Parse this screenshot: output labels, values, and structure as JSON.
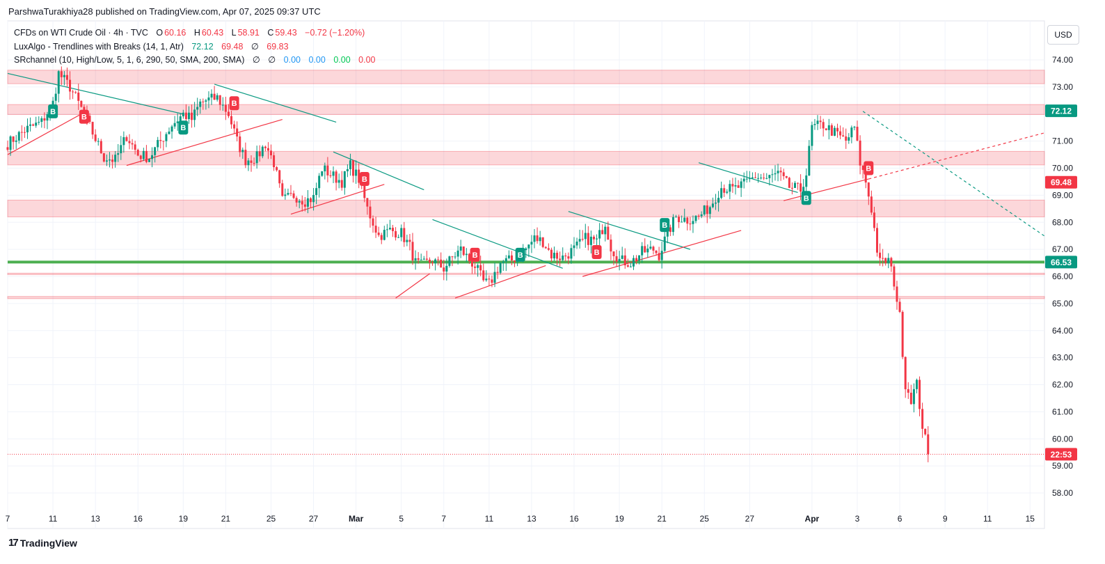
{
  "header": {
    "publisher_line": "ParshwaTurakhiya28 published on TradingView.com, Apr 07, 2025 09:37 UTC"
  },
  "legend": {
    "symbol": "CFDs on WTI Crude Oil · 4h · TVC",
    "o_label": "O",
    "o_value": "60.16",
    "h_label": "H",
    "h_value": "60.43",
    "l_label": "L",
    "l_value": "58.91",
    "c_label": "C",
    "c_value": "59.43",
    "change": "−0.72 (−1.20%)",
    "indicator1_name": "LuxAlgo - Trendlines with Breaks (14, 1, Atr)",
    "indicator1_v1": "72.12",
    "indicator1_v2": "69.48",
    "indicator1_v3": "∅",
    "indicator1_v4": "69.83",
    "indicator2_name": "SRchannel (10, High/Low, 5, 1, 6, 290, 50, SMA, 200, SMA)",
    "indicator2_v1": "∅",
    "indicator2_v2": "∅",
    "indicator2_v3": "0.00",
    "indicator2_v4": "0.00",
    "indicator2_v5": "0.00",
    "indicator2_v6": "0.00"
  },
  "currency_button": "USD",
  "footer": {
    "brand": "TradingView",
    "brand_mark": "17"
  },
  "colors": {
    "up": "#089981",
    "down": "#f23645",
    "zone": "#f23645",
    "support_line": "#4caf50"
  },
  "chart_data": {
    "type": "candlestick",
    "timeframe": "4h",
    "y_range": [
      57.5,
      74.5
    ],
    "y_ticks": [
      58,
      59,
      60,
      61,
      62,
      63,
      64,
      65,
      66,
      67,
      68,
      69,
      70,
      71,
      72,
      73,
      74
    ],
    "x_ticks": [
      {
        "label": "7",
        "i": 0,
        "bold": false
      },
      {
        "label": "11",
        "i": 16,
        "bold": false
      },
      {
        "label": "13",
        "i": 31,
        "bold": false
      },
      {
        "label": "16",
        "i": 46,
        "bold": false
      },
      {
        "label": "19",
        "i": 62,
        "bold": false
      },
      {
        "label": "21",
        "i": 77,
        "bold": false
      },
      {
        "label": "25",
        "i": 93,
        "bold": false
      },
      {
        "label": "27",
        "i": 108,
        "bold": false
      },
      {
        "label": "Mar",
        "i": 123,
        "bold": true
      },
      {
        "label": "5",
        "i": 139,
        "bold": false
      },
      {
        "label": "7",
        "i": 154,
        "bold": false
      },
      {
        "label": "11",
        "i": 170,
        "bold": false
      },
      {
        "label": "13",
        "i": 185,
        "bold": false
      },
      {
        "label": "16",
        "i": 200,
        "bold": false
      },
      {
        "label": "19",
        "i": 216,
        "bold": false
      },
      {
        "label": "21",
        "i": 231,
        "bold": false
      },
      {
        "label": "25",
        "i": 246,
        "bold": false
      },
      {
        "label": "27",
        "i": 262,
        "bold": false
      },
      {
        "label": "Apr",
        "i": 284,
        "bold": true
      },
      {
        "label": "3",
        "i": 300,
        "bold": false
      },
      {
        "label": "6",
        "i": 315,
        "bold": false
      },
      {
        "label": "9",
        "i": 331,
        "bold": false
      },
      {
        "label": "11",
        "i": 346,
        "bold": false
      },
      {
        "label": "15",
        "i": 361,
        "bold": false
      }
    ],
    "price_labels": [
      {
        "value": 72.12,
        "text": "72.12",
        "color": "#089981"
      },
      {
        "value": 69.48,
        "text": "69.48",
        "color": "#f23645"
      },
      {
        "value": 66.53,
        "text": "66.53",
        "color": "#089981"
      },
      {
        "value": 59.43,
        "text": "22:53",
        "color": "#f23645"
      }
    ],
    "current_price": 59.43,
    "zones": [
      [
        73.12,
        73.62
      ],
      [
        71.98,
        72.35
      ],
      [
        70.12,
        70.62
      ],
      [
        68.2,
        68.82
      ],
      [
        66.08,
        66.12
      ],
      [
        65.18,
        65.26
      ]
    ],
    "support_level": 66.53,
    "anchors": [
      [
        0,
        70.9
      ],
      [
        6,
        71.4
      ],
      [
        12,
        71.7
      ],
      [
        16,
        72.4
      ],
      [
        18,
        73.5
      ],
      [
        22,
        73.0
      ],
      [
        26,
        72.2
      ],
      [
        30,
        71.3
      ],
      [
        34,
        70.4
      ],
      [
        38,
        70.3
      ],
      [
        42,
        71.2
      ],
      [
        46,
        70.5
      ],
      [
        50,
        70.4
      ],
      [
        54,
        71.0
      ],
      [
        58,
        71.6
      ],
      [
        62,
        72.0
      ],
      [
        65,
        71.8
      ],
      [
        68,
        72.4
      ],
      [
        70,
        72.5
      ],
      [
        74,
        72.6
      ],
      [
        78,
        72.0
      ],
      [
        81,
        71.0
      ],
      [
        84,
        70.3
      ],
      [
        88,
        70.4
      ],
      [
        91,
        70.9
      ],
      [
        94,
        70.2
      ],
      [
        97,
        68.8
      ],
      [
        101,
        69.0
      ],
      [
        105,
        68.8
      ],
      [
        108,
        68.9
      ],
      [
        111,
        70.0
      ],
      [
        115,
        69.7
      ],
      [
        118,
        69.5
      ],
      [
        121,
        70.1
      ],
      [
        124,
        69.6
      ],
      [
        127,
        68.5
      ],
      [
        131,
        67.5
      ],
      [
        135,
        67.7
      ],
      [
        139,
        67.6
      ],
      [
        142,
        67.1
      ],
      [
        144,
        66.5
      ],
      [
        146,
        66.4
      ],
      [
        150,
        66.6
      ],
      [
        154,
        66.3
      ],
      [
        157,
        66.7
      ],
      [
        160,
        67.0
      ],
      [
        163,
        66.6
      ],
      [
        165,
        66.4
      ],
      [
        168,
        65.8
      ],
      [
        170,
        65.7
      ],
      [
        174,
        66.5
      ],
      [
        178,
        66.6
      ],
      [
        182,
        66.9
      ],
      [
        186,
        67.4
      ],
      [
        189,
        67.3
      ],
      [
        192,
        66.8
      ],
      [
        196,
        66.7
      ],
      [
        200,
        67.0
      ],
      [
        204,
        67.4
      ],
      [
        208,
        67.3
      ],
      [
        211,
        68.0
      ],
      [
        213,
        67.1
      ],
      [
        216,
        66.6
      ],
      [
        220,
        66.5
      ],
      [
        224,
        66.9
      ],
      [
        228,
        67.0
      ],
      [
        230,
        66.8
      ],
      [
        233,
        67.6
      ],
      [
        236,
        68.2
      ],
      [
        240,
        68.1
      ],
      [
        244,
        68.2
      ],
      [
        248,
        68.6
      ],
      [
        252,
        69.3
      ],
      [
        256,
        69.2
      ],
      [
        260,
        69.4
      ],
      [
        264,
        69.7
      ],
      [
        268,
        69.6
      ],
      [
        272,
        69.8
      ],
      [
        276,
        69.3
      ],
      [
        280,
        69.2
      ],
      [
        282,
        69.8
      ],
      [
        284,
        71.5
      ],
      [
        288,
        71.6
      ],
      [
        292,
        71.3
      ],
      [
        296,
        71.0
      ],
      [
        299,
        71.5
      ],
      [
        301,
        70.2
      ],
      [
        303,
        69.5
      ],
      [
        305,
        68.5
      ],
      [
        307,
        67.0
      ],
      [
        308,
        66.5
      ],
      [
        311,
        66.6
      ],
      [
        313,
        65.8
      ],
      [
        315,
        64.5
      ],
      [
        317,
        62.0
      ],
      [
        319,
        61.5
      ],
      [
        321,
        62.0
      ],
      [
        323,
        60.5
      ],
      [
        325,
        59.43
      ]
    ],
    "trendlines": [
      {
        "color": "#089981",
        "dashed": false,
        "from": [
          -2,
          73.5
        ],
        "to": [
          62,
          72.0
        ]
      },
      {
        "color": "#f23645",
        "dashed": false,
        "from": [
          -2,
          70.5
        ],
        "to": [
          26,
          72.0
        ]
      },
      {
        "color": "#089981",
        "dashed": false,
        "from": [
          73,
          73.1
        ],
        "to": [
          116,
          71.7
        ]
      },
      {
        "color": "#f23645",
        "dashed": false,
        "from": [
          42,
          70.1
        ],
        "to": [
          97,
          71.8
        ]
      },
      {
        "color": "#089981",
        "dashed": false,
        "from": [
          115,
          70.6
        ],
        "to": [
          147,
          69.2
        ]
      },
      {
        "color": "#f23645",
        "dashed": false,
        "from": [
          100,
          68.3
        ],
        "to": [
          133,
          69.4
        ]
      },
      {
        "color": "#089981",
        "dashed": false,
        "from": [
          150,
          68.1
        ],
        "to": [
          196,
          66.3
        ]
      },
      {
        "color": "#f23645",
        "dashed": false,
        "from": [
          137,
          65.2
        ],
        "to": [
          149,
          66.1
        ]
      },
      {
        "color": "#f23645",
        "dashed": false,
        "from": [
          158,
          65.2
        ],
        "to": [
          190,
          66.4
        ]
      },
      {
        "color": "#089981",
        "dashed": false,
        "from": [
          198,
          68.4
        ],
        "to": [
          241,
          67.0
        ]
      },
      {
        "color": "#f23645",
        "dashed": false,
        "from": [
          203,
          66.0
        ],
        "to": [
          259,
          67.7
        ]
      },
      {
        "color": "#089981",
        "dashed": false,
        "from": [
          244,
          70.2
        ],
        "to": [
          279,
          69.1
        ]
      },
      {
        "color": "#f23645",
        "dashed": false,
        "from": [
          274,
          68.8
        ],
        "to": [
          304,
          69.6
        ]
      },
      {
        "color": "#f23645",
        "dashed": true,
        "from": [
          304,
          69.6
        ],
        "to": [
          366,
          71.3
        ]
      },
      {
        "color": "#089981",
        "dashed": true,
        "from": [
          302,
          72.1
        ],
        "to": [
          366,
          67.5
        ]
      }
    ],
    "signals": [
      {
        "type": "B",
        "dir": "up",
        "i": 16,
        "price": 72.1
      },
      {
        "type": "B",
        "dir": "down",
        "i": 27,
        "price": 71.9
      },
      {
        "type": "B",
        "dir": "up",
        "i": 62,
        "price": 71.5
      },
      {
        "type": "B",
        "dir": "down",
        "i": 80,
        "price": 72.4
      },
      {
        "type": "B",
        "dir": "down",
        "i": 126,
        "price": 69.6
      },
      {
        "type": "B",
        "dir": "down",
        "i": 165,
        "price": 66.8
      },
      {
        "type": "B",
        "dir": "up",
        "i": 181,
        "price": 66.8
      },
      {
        "type": "B",
        "dir": "down",
        "i": 208,
        "price": 66.9
      },
      {
        "type": "B",
        "dir": "up",
        "i": 232,
        "price": 67.9
      },
      {
        "type": "B",
        "dir": "up",
        "i": 282,
        "price": 68.9
      },
      {
        "type": "B",
        "dir": "down",
        "i": 304,
        "price": 70.0
      }
    ]
  }
}
